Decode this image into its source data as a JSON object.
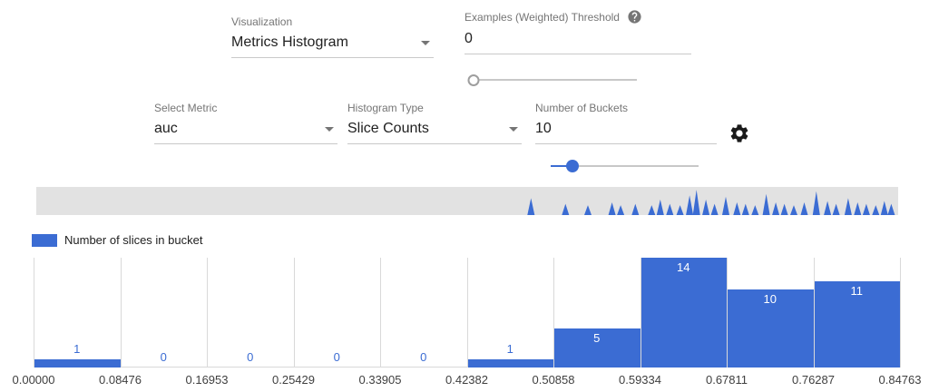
{
  "controls": {
    "visualization": {
      "label": "Visualization",
      "value": "Metrics Histogram"
    },
    "threshold": {
      "label": "Examples (Weighted) Threshold",
      "value": "0",
      "slider_percent": 0
    },
    "select_metric": {
      "label": "Select Metric",
      "value": "auc"
    },
    "histogram_type": {
      "label": "Histogram Type",
      "value": "Slice Counts"
    },
    "num_buckets": {
      "label": "Number of Buckets",
      "value": "10",
      "slider_percent": 15
    }
  },
  "icons": {
    "help": "help-icon (gray circle with question mark)",
    "gear": "gear-icon (black settings cog)",
    "chevron": "chevron-down-icon (gray dropdown triangle)"
  },
  "legend": {
    "label": "Number of slices in bucket"
  },
  "colors": {
    "bar": "#3b6cd3",
    "strip_bg": "#e2e2e2",
    "gridline": "#d9d9d9",
    "label_inside": "#ffffff"
  },
  "chart_data": {
    "type": "bar",
    "series_name": "Number of slices in bucket",
    "categories": [
      "0.00000-0.08476",
      "0.08476-0.16953",
      "0.16953-0.25429",
      "0.25429-0.33905",
      "0.33905-0.42382",
      "0.42382-0.50858",
      "0.50858-0.59334",
      "0.59334-0.67811",
      "0.67811-0.76287",
      "0.76287-0.84763"
    ],
    "values": [
      1,
      0,
      0,
      0,
      0,
      1,
      5,
      14,
      10,
      11
    ],
    "xticks": [
      "0.00000",
      "0.08476",
      "0.16953",
      "0.25429",
      "0.33905",
      "0.42382",
      "0.50858",
      "0.59334",
      "0.67811",
      "0.76287",
      "0.84763"
    ],
    "ylim": [
      0,
      14
    ],
    "grid": true,
    "legend_position": "top-left",
    "title": "",
    "xlabel": "",
    "ylabel": ""
  },
  "overview": {
    "spikes": [
      [
        0.574,
        0.6
      ],
      [
        0.614,
        0.4
      ],
      [
        0.64,
        0.35
      ],
      [
        0.668,
        0.45
      ],
      [
        0.678,
        0.35
      ],
      [
        0.695,
        0.4
      ],
      [
        0.714,
        0.35
      ],
      [
        0.724,
        0.55
      ],
      [
        0.735,
        0.4
      ],
      [
        0.747,
        0.35
      ],
      [
        0.758,
        0.7
      ],
      [
        0.766,
        0.9
      ],
      [
        0.777,
        0.55
      ],
      [
        0.787,
        0.4
      ],
      [
        0.8,
        0.65
      ],
      [
        0.813,
        0.45
      ],
      [
        0.823,
        0.4
      ],
      [
        0.834,
        0.35
      ],
      [
        0.847,
        0.75
      ],
      [
        0.858,
        0.45
      ],
      [
        0.868,
        0.4
      ],
      [
        0.879,
        0.35
      ],
      [
        0.891,
        0.45
      ],
      [
        0.905,
        0.85
      ],
      [
        0.918,
        0.5
      ],
      [
        0.928,
        0.4
      ],
      [
        0.942,
        0.6
      ],
      [
        0.953,
        0.45
      ],
      [
        0.963,
        0.4
      ],
      [
        0.974,
        0.35
      ],
      [
        0.984,
        0.5
      ],
      [
        0.992,
        0.4
      ]
    ]
  }
}
